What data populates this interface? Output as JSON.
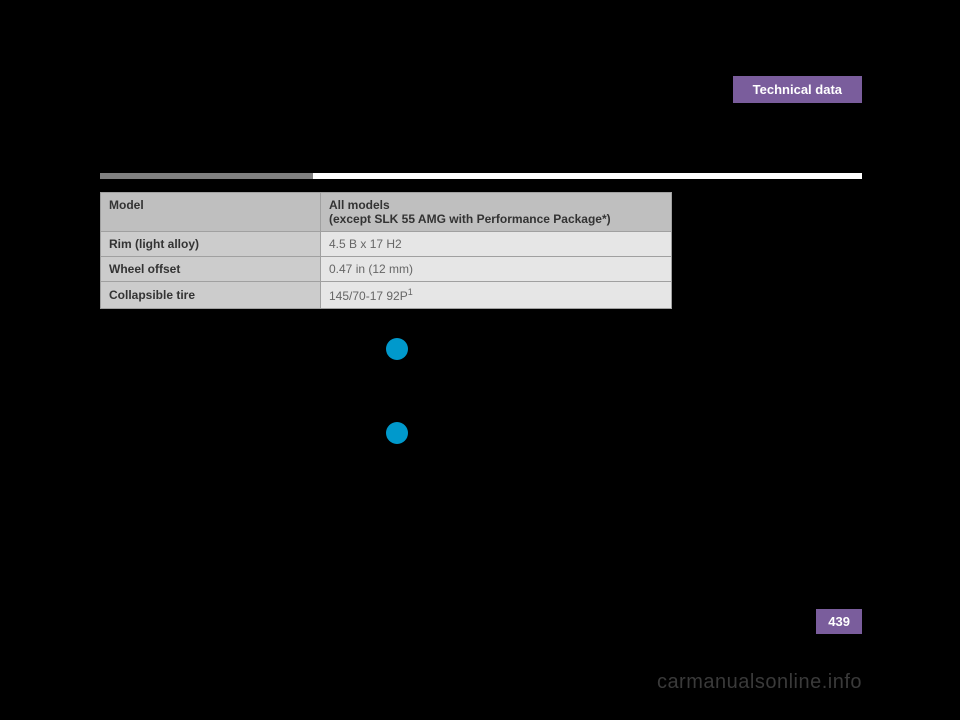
{
  "header": {
    "tab": "Technical data"
  },
  "table": {
    "header_col1": "Model",
    "header_col2_line1": "All models",
    "header_col2_line2": "(except SLK 55 AMG with Performance Package*)",
    "rows": [
      {
        "label": "Rim (light alloy)",
        "value": "4.5 B x 17 H2"
      },
      {
        "label": "Wheel offset",
        "value": "0.47 in (12 mm)"
      },
      {
        "label": "Collapsible tire",
        "value": "145/70-17 92P",
        "sup": "1"
      }
    ]
  },
  "page_number": "439",
  "watermark": "carmanualsonline.info",
  "colors": {
    "page_bg": "#000000",
    "accent": "#7a5d9c",
    "info_icon": "#0099cc",
    "th_bg": "#bfbfbf",
    "label_bg": "#cccccc",
    "value_bg": "#e6e6e6"
  }
}
